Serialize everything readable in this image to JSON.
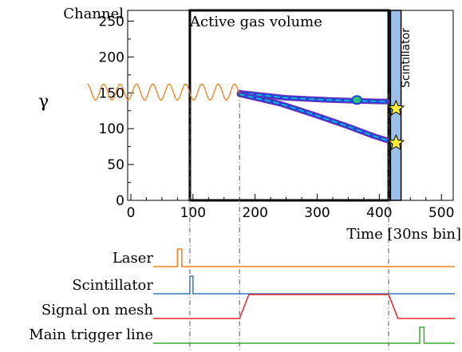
{
  "chart_data": {
    "type": "scatter",
    "title": "",
    "xlabel": "Time [30ns bin]",
    "ylabel": "Channel",
    "xlim": [
      0,
      510
    ],
    "ylim": [
      0,
      265
    ],
    "x_ticks": [
      0,
      100,
      200,
      300,
      400,
      500
    ],
    "y_ticks": [
      0,
      50,
      100,
      150,
      200,
      250
    ],
    "tracks": [
      {
        "x": [
          175,
          250,
          320,
          360,
          400,
          412
        ],
        "y": [
          150,
          143,
          140,
          139,
          138,
          138
        ]
      },
      {
        "x": [
          175,
          240,
          300,
          350,
          390,
          412
        ],
        "y": [
          148,
          135,
          118,
          103,
          90,
          84
        ]
      }
    ],
    "hotspot": {
      "x": 364,
      "y": 140
    },
    "star_channels": [
      128,
      80
    ]
  },
  "labels": {
    "active_volume": "Active gas volume",
    "scintillator_region": "Scintillator",
    "gamma": "γ"
  },
  "regions": {
    "active_volume_x": [
      95,
      415
    ],
    "scintillator_x": [
      418,
      435
    ]
  },
  "photon_wave_x": [
    -70,
    175
  ],
  "markers_x": [
    95,
    175,
    415
  ],
  "signals": [
    {
      "name": "Laser",
      "color": "#f07f1f",
      "kind": "pulse",
      "start": 75,
      "end": 82
    },
    {
      "name": "Scintillator",
      "color": "#3b74c0",
      "kind": "pulse",
      "start": 95,
      "end": 100
    },
    {
      "name": "Signal on mesh",
      "color": "#e0262b",
      "kind": "trap",
      "t": [
        175,
        190,
        415,
        430
      ]
    },
    {
      "name": "Main trigger line",
      "color": "#3aa83a",
      "kind": "pulse",
      "start": 465,
      "end": 472
    }
  ],
  "colors": {
    "wave": "#f07f1f",
    "scint_fill": "#9cc0e8",
    "track_outer": "#6a30b8",
    "track_mid": "#1b48d6",
    "track_inner": "#1fc8e0",
    "hot": "#2ec07a",
    "star_fill": "#ffee33"
  }
}
